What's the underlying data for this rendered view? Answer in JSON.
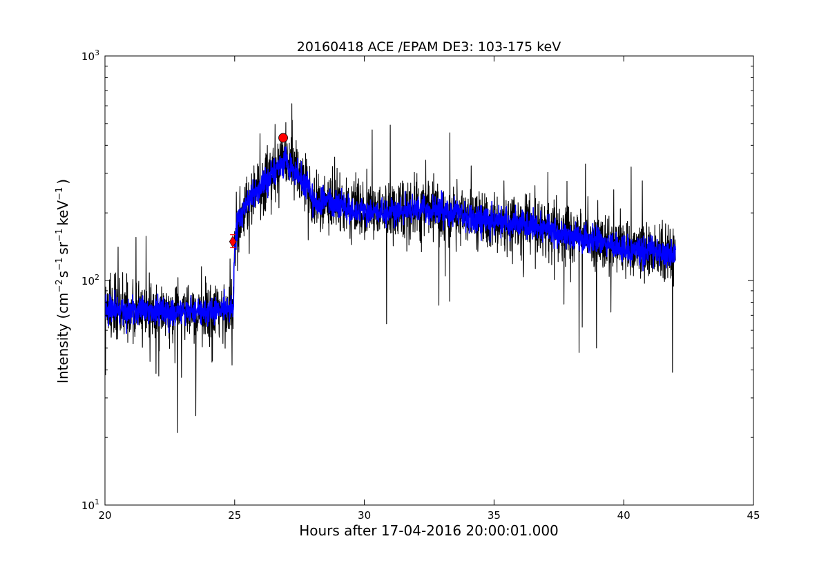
{
  "chart_data": {
    "type": "line",
    "title": "20160418 ACE /EPAM DE3: 103-175 keV",
    "xlabel": "Hours after 17-04-2016 20:00:01.000",
    "ylabel_parts": {
      "prefix": "Intensity (cm",
      "exp1": "−2",
      "mid1": "s",
      "exp2": "−1",
      "mid2": "sr",
      "exp3": "−1",
      "mid3": "keV",
      "exp4": "−1",
      "suffix": ")"
    },
    "xlim": [
      20,
      45
    ],
    "ylim": [
      10,
      1000
    ],
    "yscale": "log",
    "grid": false,
    "x_ticks": [
      {
        "value": 20,
        "label": "20"
      },
      {
        "value": 25,
        "label": "25"
      },
      {
        "value": 30,
        "label": "30"
      },
      {
        "value": 35,
        "label": "35"
      },
      {
        "value": 40,
        "label": "40"
      },
      {
        "value": 45,
        "label": "45"
      }
    ],
    "y_ticks": [
      {
        "value": 10,
        "base": "10",
        "exp": "1"
      },
      {
        "value": 100,
        "base": "10",
        "exp": "2"
      },
      {
        "value": 1000,
        "base": "10",
        "exp": "3"
      }
    ],
    "series": [
      {
        "role": "raw",
        "color": "#000000",
        "noise_sigma": 0.14,
        "spike_prob": 0.045,
        "spike_sigma": 0.42,
        "seed": 17,
        "x_start": 20.0,
        "x_end": 42.0,
        "x_step": 0.0083,
        "envelope": [
          [
            20.0,
            75
          ],
          [
            21.0,
            72
          ],
          [
            22.0,
            73
          ],
          [
            23.0,
            72
          ],
          [
            24.0,
            73
          ],
          [
            24.95,
            75
          ],
          [
            25.0,
            145
          ],
          [
            25.1,
            180
          ],
          [
            25.4,
            215
          ],
          [
            25.8,
            240
          ],
          [
            26.3,
            290
          ],
          [
            26.9,
            345
          ],
          [
            27.3,
            300
          ],
          [
            27.8,
            265
          ],
          [
            28.1,
            220
          ],
          [
            28.6,
            225
          ],
          [
            29.5,
            205
          ],
          [
            31.0,
            200
          ],
          [
            32.0,
            210
          ],
          [
            33.0,
            205
          ],
          [
            34.0,
            195
          ],
          [
            35.0,
            185
          ],
          [
            36.0,
            180
          ],
          [
            37.0,
            170
          ],
          [
            38.0,
            158
          ],
          [
            39.0,
            150
          ],
          [
            40.0,
            140
          ],
          [
            41.0,
            135
          ],
          [
            42.0,
            130
          ]
        ],
        "dips": [
          {
            "x": 20.02,
            "y": 38
          },
          {
            "x": 22.8,
            "y": 21
          },
          {
            "x": 23.5,
            "y": 25
          },
          {
            "x": 22.95,
            "y": 37
          },
          {
            "x": 38.4,
            "y": 62
          },
          {
            "x": 38.95,
            "y": 50
          },
          {
            "x": 24.9,
            "y": 42
          }
        ]
      },
      {
        "role": "smoothed",
        "color": "#0000ff",
        "noise_sigma": 0.07,
        "spike_prob": 0.0,
        "spike_sigma": 0.0,
        "seed": 91,
        "x_start": 20.0,
        "x_end": 42.0,
        "x_step": 0.0083
      }
    ],
    "markers": [
      {
        "type": "diamond",
        "x": 24.93,
        "y": 149,
        "err_low": 140,
        "err_high": 160,
        "color": "#ff0000"
      },
      {
        "type": "circle",
        "x": 26.87,
        "y": 432,
        "color": "#ff0000"
      }
    ]
  }
}
